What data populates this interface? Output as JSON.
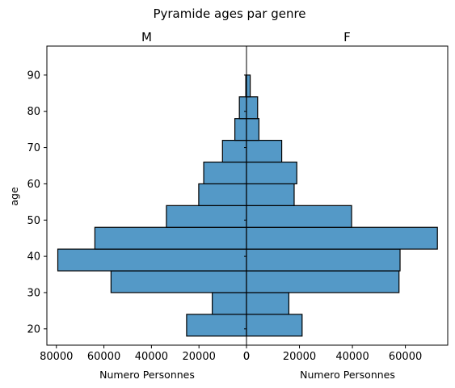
{
  "chart_data": {
    "type": "bar",
    "orientation": "horizontal",
    "title": "Pyramide ages par genre",
    "bar_color": "#5499c7",
    "edge_color": "#000000",
    "ylabel": "age",
    "ylim": [
      15.5,
      98
    ],
    "yticks": [
      20,
      30,
      40,
      50,
      60,
      70,
      80,
      90
    ],
    "bins": [
      [
        18,
        24
      ],
      [
        24,
        30
      ],
      [
        30,
        36
      ],
      [
        36,
        42
      ],
      [
        42,
        48
      ],
      [
        48,
        54
      ],
      [
        54,
        60
      ],
      [
        60,
        66
      ],
      [
        66,
        72
      ],
      [
        72,
        78
      ],
      [
        78,
        84
      ],
      [
        84,
        90
      ],
      [
        90,
        96
      ]
    ],
    "panels": [
      {
        "side": "left",
        "title": "M",
        "xlabel": "Numero Personnes",
        "xlim": [
          84000,
          0
        ],
        "xticks": [
          80000,
          60000,
          40000,
          20000,
          0
        ],
        "xtick_labels": [
          "80000",
          "60000",
          "40000",
          "20000",
          "0"
        ],
        "values": [
          25200,
          14400,
          57000,
          79400,
          63800,
          33700,
          20100,
          18000,
          10100,
          4900,
          3000,
          300,
          0
        ]
      },
      {
        "side": "right",
        "title": "F",
        "xlabel": "Numero Personnes",
        "xlim": [
          0,
          76000
        ],
        "xticks": [
          0,
          20000,
          40000,
          60000
        ],
        "xtick_labels": [
          "0",
          "20000",
          "40000",
          "60000"
        ],
        "values": [
          21000,
          16000,
          57600,
          58000,
          72100,
          39700,
          18000,
          19000,
          13300,
          4700,
          4200,
          1400,
          0
        ]
      }
    ]
  }
}
